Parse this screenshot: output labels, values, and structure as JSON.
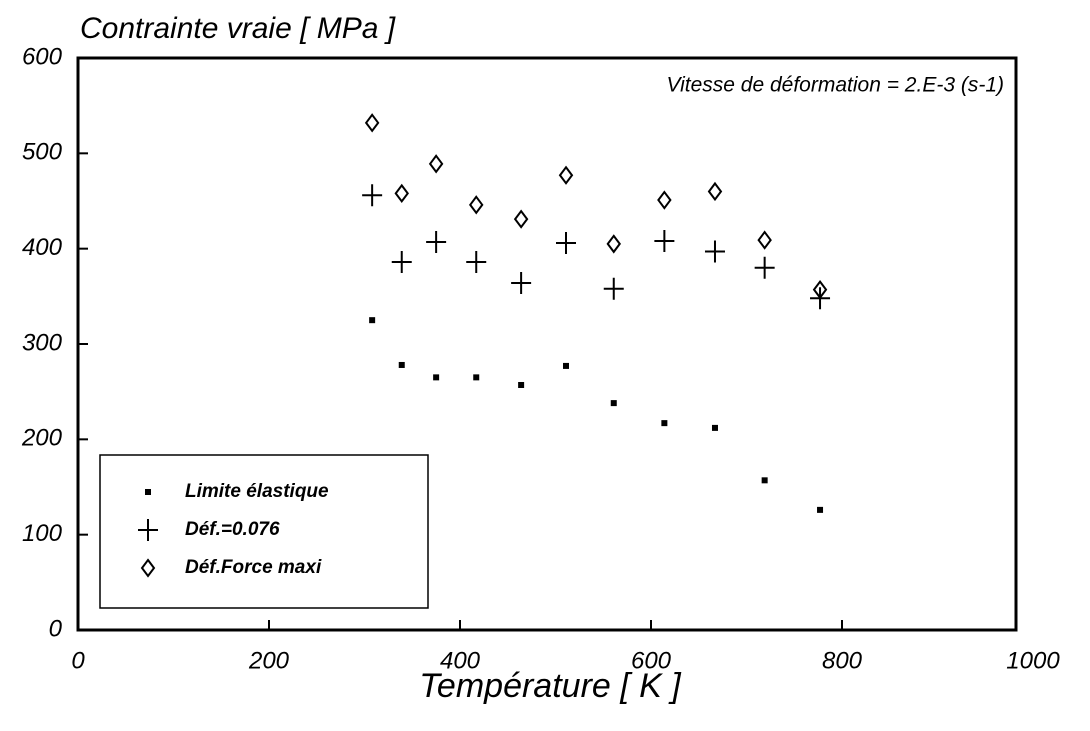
{
  "chart_data": {
    "type": "scatter",
    "title": "Contrainte vraie [ MPa ]",
    "x_label": "Température [ K ]",
    "annotation": "Vitesse de déformation = 2.E-3 (s-1)",
    "xlim": [
      0,
      1000
    ],
    "xticks": [
      0,
      200,
      400,
      600,
      800,
      1000
    ],
    "ylim": [
      0,
      600
    ],
    "yticks": [
      0,
      100,
      200,
      300,
      400,
      500,
      600
    ],
    "legend": "lower left",
    "series": [
      {
        "name": "Limite élastique",
        "marker": "square",
        "color": "#000",
        "x": [
          308,
          339,
          375,
          417,
          464,
          511,
          561,
          614,
          667,
          719,
          777
        ],
        "values": [
          325,
          278,
          265,
          265,
          257,
          277,
          238,
          217,
          212,
          157,
          126
        ]
      },
      {
        "name": "Déf.=0.076",
        "marker": "plus",
        "color": "#000",
        "x": [
          308,
          339,
          375,
          417,
          464,
          511,
          561,
          614,
          667,
          719,
          777
        ],
        "values": [
          456,
          386,
          407,
          386,
          364,
          406,
          358,
          408,
          397,
          380,
          348
        ]
      },
      {
        "name": "Déf.Force maxi",
        "marker": "diamond",
        "color": "#000",
        "x": [
          308,
          339,
          375,
          417,
          464,
          511,
          561,
          614,
          667,
          719,
          777
        ],
        "values": [
          532,
          458,
          489,
          446,
          431,
          477,
          405,
          451,
          460,
          409,
          357
        ]
      }
    ]
  }
}
